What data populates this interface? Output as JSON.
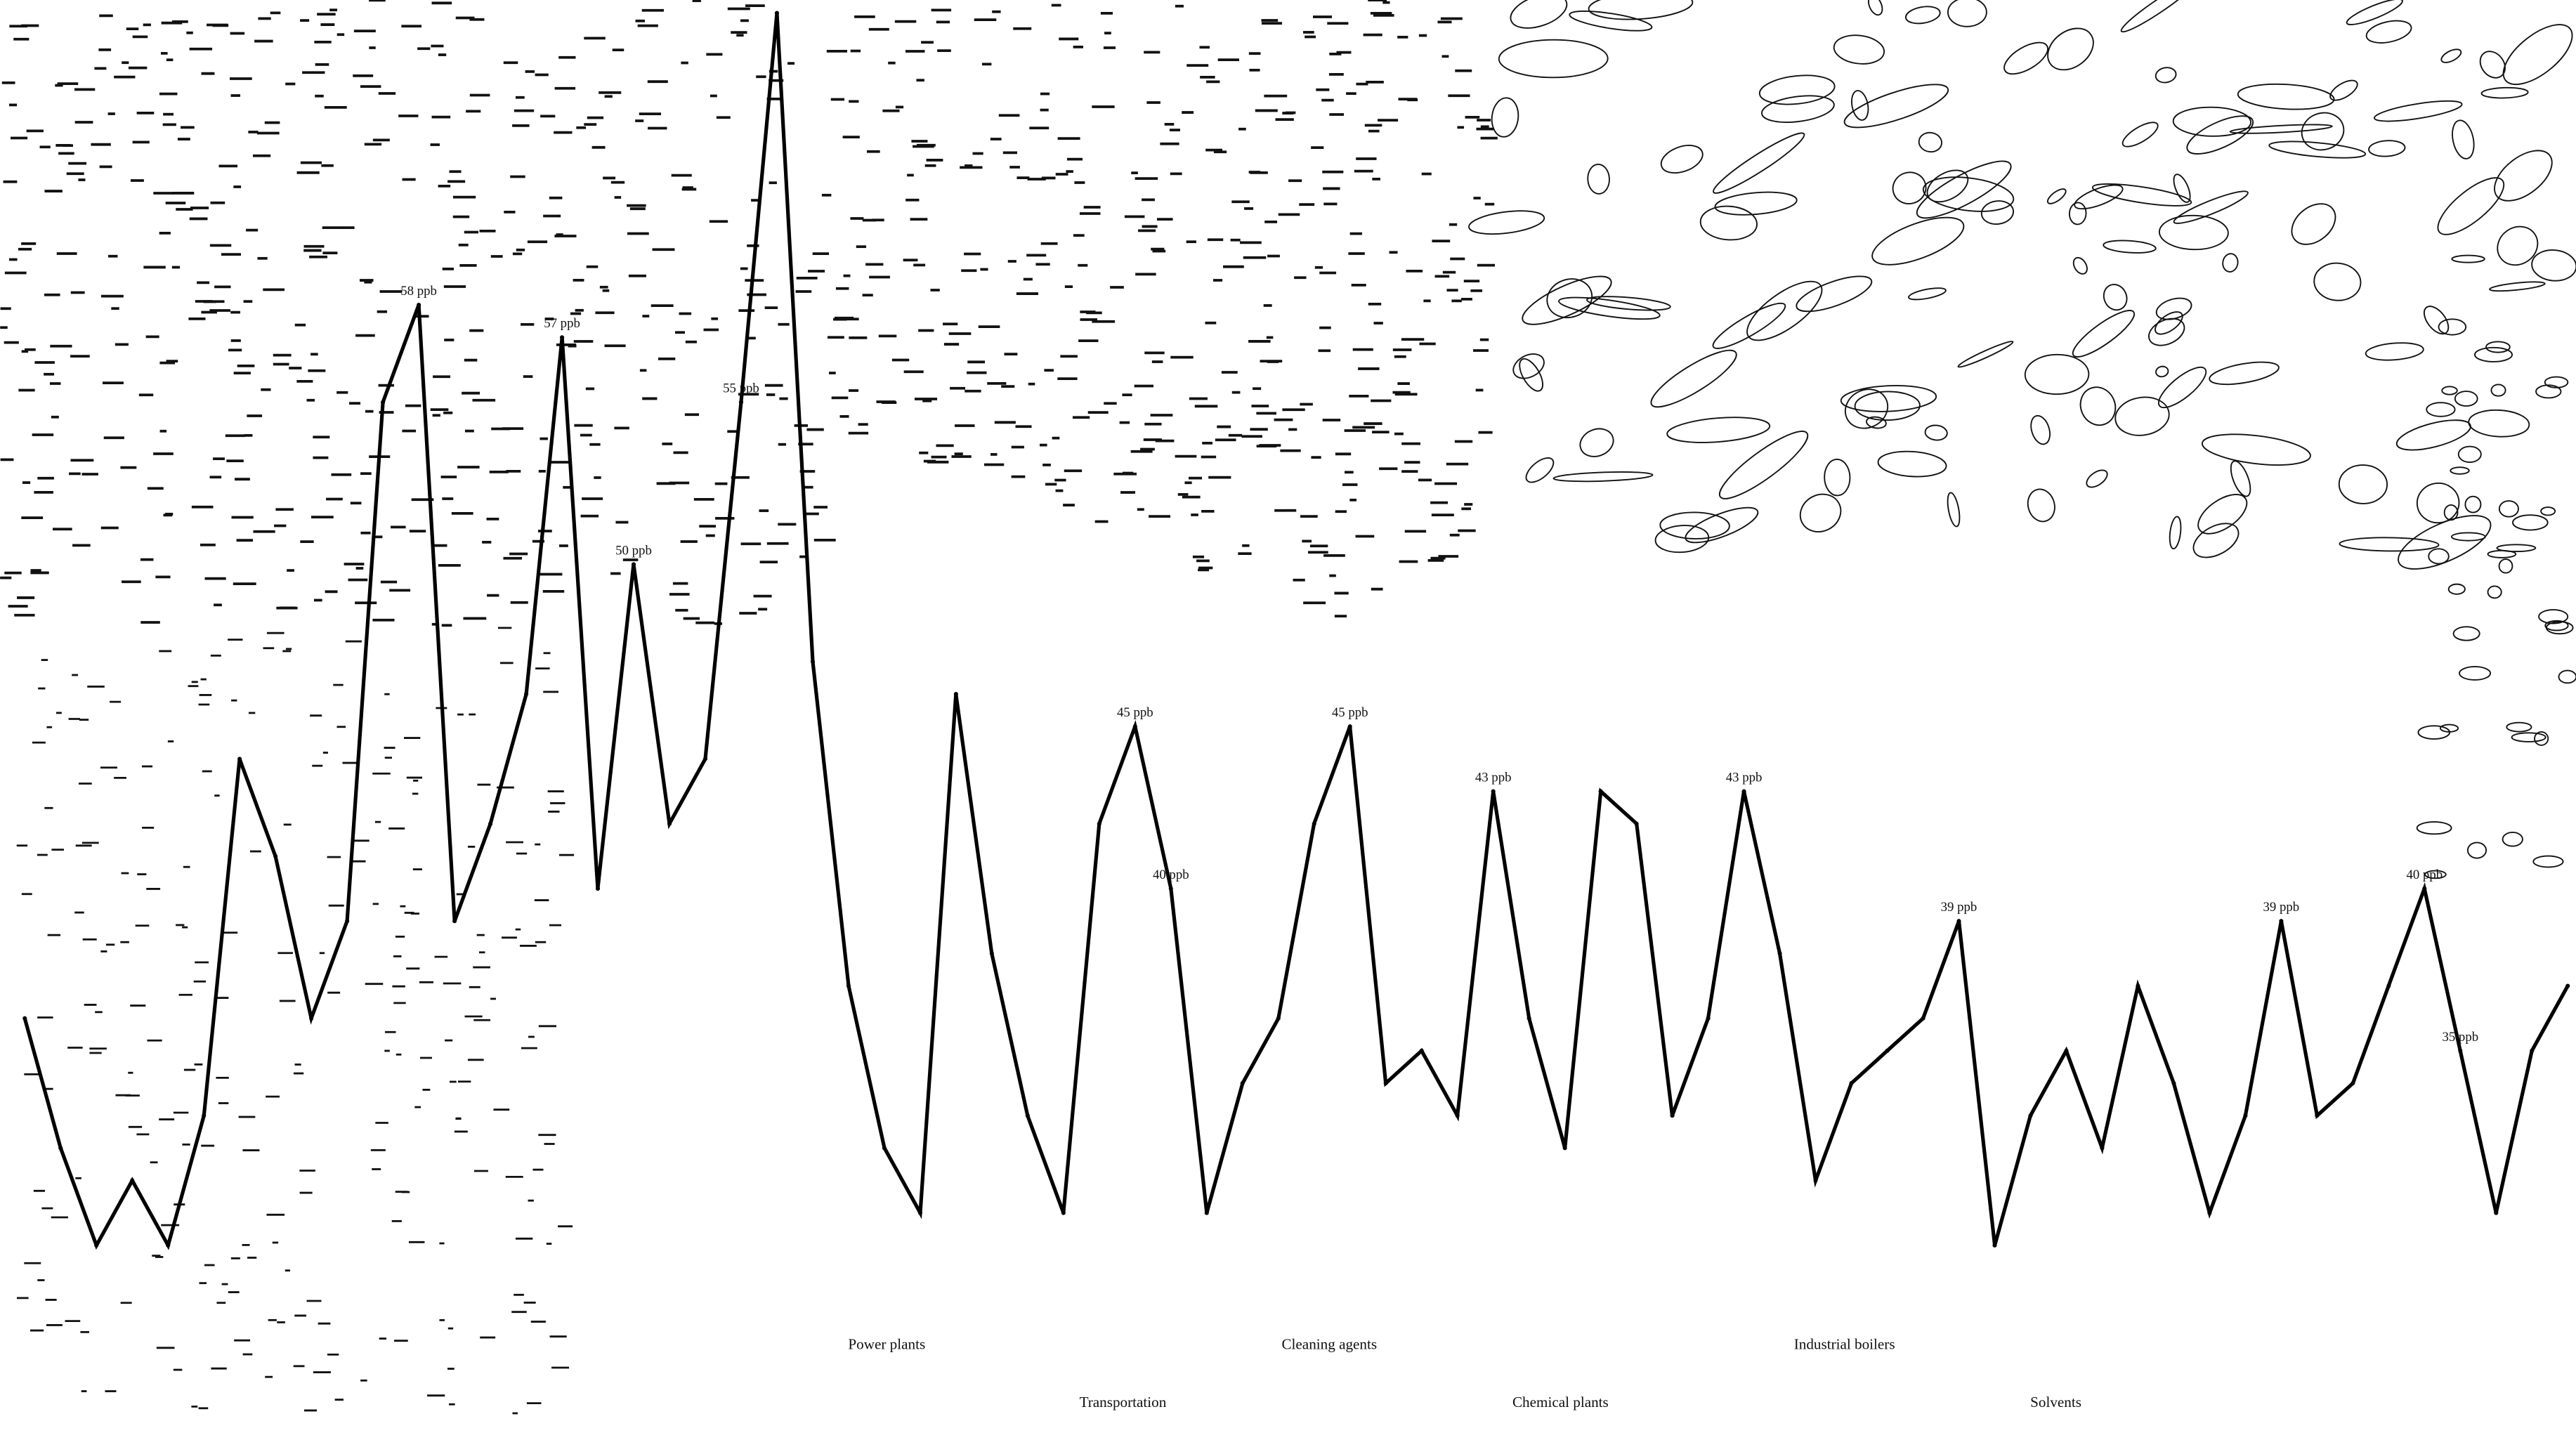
{
  "chart_data": {
    "type": "line",
    "color": "#000000",
    "ylim": [
      23,
      67.4
    ],
    "values": [
      36,
      32,
      29,
      31,
      29,
      33,
      44,
      41,
      36,
      39,
      55,
      58,
      39,
      42,
      46,
      57,
      40,
      50,
      42,
      44,
      55,
      67,
      47,
      37,
      32,
      30,
      46,
      38,
      33,
      30,
      42,
      45,
      40,
      30,
      34,
      36,
      42,
      45,
      34,
      35,
      33,
      43,
      36,
      32,
      43,
      42,
      33,
      36,
      43,
      38,
      31,
      34,
      35,
      36,
      39,
      29,
      33,
      35,
      32,
      37,
      34,
      30,
      33,
      39,
      33,
      34,
      37,
      40,
      35,
      30,
      35,
      37
    ],
    "value_labels": [
      null,
      null,
      null,
      null,
      null,
      null,
      null,
      null,
      null,
      null,
      null,
      "58 ppb",
      null,
      null,
      null,
      "57 ppb",
      null,
      "50 ppb",
      null,
      null,
      "55 ppb",
      null,
      null,
      null,
      null,
      null,
      null,
      null,
      null,
      null,
      null,
      "45 ppb",
      "40 ppb",
      null,
      null,
      null,
      null,
      "45 ppb",
      null,
      null,
      null,
      "43 ppb",
      null,
      null,
      null,
      null,
      null,
      null,
      "43 ppb",
      null,
      null,
      null,
      null,
      null,
      "39 ppb",
      null,
      null,
      null,
      null,
      null,
      null,
      null,
      null,
      "39 ppb",
      null,
      null,
      null,
      "40 ppb",
      "35 ppb",
      null,
      null,
      null
    ],
    "sources": [
      "Power plants",
      "Transportation",
      "Cleaning agents",
      "Chemical plants",
      "Industrial boilers",
      "Solvents"
    ]
  }
}
